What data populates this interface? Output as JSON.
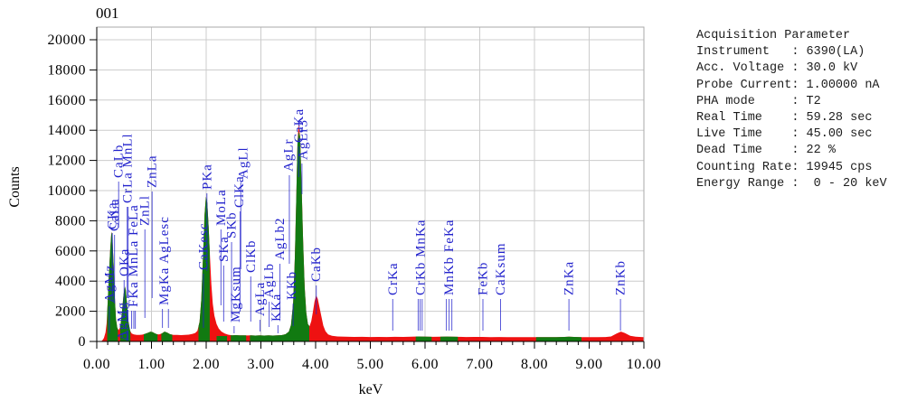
{
  "title": "001",
  "colors": {
    "spectrum_red": "#ee1111",
    "identified_green": "#117a11",
    "peak_label_blue": "#2222cc",
    "gridline": "#cccccc",
    "frame": "#aaaaaa",
    "axis": "#000000"
  },
  "acquisition": {
    "header": "Acquisition Parameter",
    "lines": [
      "Instrument   : 6390(LA)",
      "Acc. Voltage : 30.0 kV",
      "Probe Current: 1.00000 nA",
      "PHA mode     : T2",
      "Real Time    : 59.28 sec",
      "Live Time    : 45.00 sec",
      "Dead Time    : 22 %",
      "Counting Rate: 19945 cps",
      "Energy Range :  0 - 20 keV"
    ]
  },
  "chart_data": {
    "type": "area",
    "title": "001",
    "xlabel": "keV",
    "ylabel": "Counts",
    "xlim": [
      0,
      10
    ],
    "ylim": [
      0,
      20850
    ],
    "x_ticks": [
      0,
      1,
      2,
      3,
      4,
      5,
      6,
      7,
      8,
      9,
      10
    ],
    "x_minor_step": 0.2,
    "y_ticks": [
      0,
      2000,
      4000,
      6000,
      8000,
      10000,
      12000,
      14000,
      16000,
      18000,
      20000
    ],
    "grid": true,
    "legend": "none",
    "series": [
      {
        "name": "spectrum",
        "color": "#ee1111",
        "points": [
          [
            0.0,
            0
          ],
          [
            0.08,
            10
          ],
          [
            0.1,
            60
          ],
          [
            0.13,
            220
          ],
          [
            0.16,
            600
          ],
          [
            0.18,
            1200
          ],
          [
            0.2,
            2600
          ],
          [
            0.22,
            4300
          ],
          [
            0.245,
            6000
          ],
          [
            0.265,
            7100
          ],
          [
            0.275,
            7250
          ],
          [
            0.29,
            6600
          ],
          [
            0.31,
            4900
          ],
          [
            0.33,
            2900
          ],
          [
            0.35,
            1500
          ],
          [
            0.375,
            900
          ],
          [
            0.4,
            750
          ],
          [
            0.43,
            950
          ],
          [
            0.46,
            1900
          ],
          [
            0.49,
            3100
          ],
          [
            0.515,
            3650
          ],
          [
            0.53,
            3400
          ],
          [
            0.555,
            2400
          ],
          [
            0.58,
            1300
          ],
          [
            0.61,
            700
          ],
          [
            0.64,
            520
          ],
          [
            0.68,
            460
          ],
          [
            0.73,
            430
          ],
          [
            0.78,
            430
          ],
          [
            0.83,
            450
          ],
          [
            0.88,
            500
          ],
          [
            0.93,
            570
          ],
          [
            0.98,
            640
          ],
          [
            1.02,
            620
          ],
          [
            1.06,
            540
          ],
          [
            1.1,
            480
          ],
          [
            1.14,
            470
          ],
          [
            1.19,
            530
          ],
          [
            1.24,
            650
          ],
          [
            1.29,
            580
          ],
          [
            1.34,
            480
          ],
          [
            1.4,
            430
          ],
          [
            1.47,
            440
          ],
          [
            1.54,
            420
          ],
          [
            1.61,
            440
          ],
          [
            1.68,
            450
          ],
          [
            1.75,
            500
          ],
          [
            1.8,
            560
          ],
          [
            1.84,
            700
          ],
          [
            1.88,
            1300
          ],
          [
            1.91,
            2800
          ],
          [
            1.94,
            5500
          ],
          [
            1.97,
            8400
          ],
          [
            1.995,
            9600
          ],
          [
            2.02,
            9200
          ],
          [
            2.045,
            7600
          ],
          [
            2.07,
            5600
          ],
          [
            2.095,
            3800
          ],
          [
            2.12,
            2500
          ],
          [
            2.15,
            1700
          ],
          [
            2.19,
            1150
          ],
          [
            2.23,
            850
          ],
          [
            2.28,
            650
          ],
          [
            2.34,
            520
          ],
          [
            2.4,
            450
          ],
          [
            2.47,
            410
          ],
          [
            2.54,
            420
          ],
          [
            2.61,
            400
          ],
          [
            2.68,
            410
          ],
          [
            2.75,
            395
          ],
          [
            2.82,
            405
          ],
          [
            2.9,
            390
          ],
          [
            2.98,
            400
          ],
          [
            3.06,
            390
          ],
          [
            3.14,
            400
          ],
          [
            3.22,
            390
          ],
          [
            3.3,
            405
          ],
          [
            3.38,
            420
          ],
          [
            3.45,
            480
          ],
          [
            3.51,
            650
          ],
          [
            3.55,
            1100
          ],
          [
            3.59,
            2600
          ],
          [
            3.62,
            5500
          ],
          [
            3.65,
            10000
          ],
          [
            3.67,
            13200
          ],
          [
            3.69,
            14500
          ],
          [
            3.715,
            13600
          ],
          [
            3.74,
            10800
          ],
          [
            3.77,
            6800
          ],
          [
            3.8,
            3600
          ],
          [
            3.83,
            1900
          ],
          [
            3.86,
            1150
          ],
          [
            3.89,
            1000
          ],
          [
            3.92,
            1350
          ],
          [
            3.95,
            1950
          ],
          [
            3.98,
            2650
          ],
          [
            4.01,
            3050
          ],
          [
            4.04,
            2820
          ],
          [
            4.07,
            2300
          ],
          [
            4.105,
            1650
          ],
          [
            4.14,
            1050
          ],
          [
            4.18,
            680
          ],
          [
            4.23,
            470
          ],
          [
            4.3,
            380
          ],
          [
            4.4,
            330
          ],
          [
            4.55,
            310
          ],
          [
            4.7,
            300
          ],
          [
            4.85,
            305
          ],
          [
            5.0,
            295
          ],
          [
            5.15,
            300
          ],
          [
            5.3,
            295
          ],
          [
            5.45,
            305
          ],
          [
            5.6,
            300
          ],
          [
            5.75,
            310
          ],
          [
            5.88,
            330
          ],
          [
            5.95,
            325
          ],
          [
            6.05,
            310
          ],
          [
            6.15,
            305
          ],
          [
            6.28,
            315
          ],
          [
            6.4,
            325
          ],
          [
            6.5,
            315
          ],
          [
            6.6,
            305
          ],
          [
            6.75,
            295
          ],
          [
            6.9,
            300
          ],
          [
            7.05,
            300
          ],
          [
            7.2,
            290
          ],
          [
            7.35,
            295
          ],
          [
            7.5,
            285
          ],
          [
            7.65,
            290
          ],
          [
            7.8,
            282
          ],
          [
            7.95,
            288
          ],
          [
            8.1,
            282
          ],
          [
            8.25,
            285
          ],
          [
            8.4,
            288
          ],
          [
            8.55,
            300
          ],
          [
            8.63,
            310
          ],
          [
            8.72,
            298
          ],
          [
            8.85,
            288
          ],
          [
            9.0,
            282
          ],
          [
            9.15,
            285
          ],
          [
            9.3,
            295
          ],
          [
            9.4,
            330
          ],
          [
            9.5,
            520
          ],
          [
            9.58,
            650
          ],
          [
            9.65,
            560
          ],
          [
            9.75,
            380
          ],
          [
            9.85,
            310
          ],
          [
            9.95,
            295
          ],
          [
            10.0,
            290
          ]
        ]
      },
      {
        "name": "identified-regions",
        "color": "#117a11",
        "segments": [
          {
            "from": 0.19,
            "to": 0.385
          },
          {
            "from": 0.43,
            "to": 0.615
          },
          {
            "from": 0.86,
            "to": 1.11
          },
          {
            "from": 1.18,
            "to": 1.38
          },
          {
            "from": 1.86,
            "to": 2.065
          },
          {
            "from": 2.19,
            "to": 2.38,
            "cap": 360
          },
          {
            "from": 2.45,
            "to": 2.73
          },
          {
            "from": 2.8,
            "to": 3.885,
            "cap": 13900
          },
          {
            "from": 5.83,
            "to": 6.12
          },
          {
            "from": 6.28,
            "to": 6.6
          },
          {
            "from": 8.03,
            "to": 8.86
          }
        ]
      }
    ],
    "peak_labels": [
      {
        "t": "AgMz",
        "k": 0.23,
        "b": 335,
        "e": 369
      },
      {
        "t": "AgMg",
        "k": 0.46,
        "b": 377,
        "e": 0,
        "u": true
      },
      {
        "t": "CKa",
        "k": 0.285,
        "b": 254,
        "e": 334
      },
      {
        "t": "CaLa",
        "k": 0.325,
        "b": 256,
        "e": 336
      },
      {
        "t": "CaLb",
        "k": 0.4,
        "b": 197,
        "e": 252
      },
      {
        "t": "OKa",
        "k": 0.5,
        "b": 306,
        "e": 352
      },
      {
        "t": "CrLa MnLl",
        "k": 0.565,
        "b": 225,
        "e": 330,
        "lines": [
          0.556,
          0.573
        ]
      },
      {
        "t": "FKa MnLa FeLa",
        "k": 0.67,
        "b": 340,
        "e": 364,
        "lines": [
          0.637,
          0.677,
          0.705
        ]
      },
      {
        "t": "ZnLl",
        "k": 0.88,
        "b": 250,
        "e": 352
      },
      {
        "t": "ZnLa",
        "k": 1.012,
        "b": 208,
        "e": 330
      },
      {
        "t": "MgKa AgLesc",
        "k": 1.23,
        "b": 338,
        "e": 363,
        "lines": [
          1.2,
          1.31
        ]
      },
      {
        "t": "CaKesc",
        "k": 1.95,
        "b": 299,
        "e": 363
      },
      {
        "t": "PKa",
        "k": 2.013,
        "b": 210,
        "e": 300
      },
      {
        "t": "MoLa",
        "k": 2.27,
        "b": 250,
        "e": 338
      },
      {
        "t": "SKa",
        "k": 2.32,
        "b": 290,
        "e": 356
      },
      {
        "t": "SKb",
        "k": 2.464,
        "b": 264,
        "e": 352
      },
      {
        "t": "MgKsum",
        "k": 2.51,
        "b": 357,
        "e": 369,
        "tx": 2.54
      },
      {
        "t": "ClKa",
        "k": 2.621,
        "b": 230,
        "e": 345,
        "tx": 2.6
      },
      {
        "t": "AgLl",
        "k": 2.633,
        "b": 198,
        "e": 298,
        "tx": 2.68
      },
      {
        "t": "ClKb",
        "k": 2.815,
        "b": 302,
        "e": 356
      },
      {
        "t": "AgLa",
        "k": 2.984,
        "b": 350,
        "e": 367
      },
      {
        "t": "AgLb",
        "k": 3.151,
        "b": 330,
        "e": 362
      },
      {
        "t": "KKa",
        "k": 3.312,
        "b": 356,
        "e": 369,
        "tx": 3.28
      },
      {
        "t": "AgLb2",
        "k": 3.348,
        "b": 288,
        "e": 352,
        "tx": 3.35
      },
      {
        "t": "AgLr",
        "k": 3.52,
        "b": 190,
        "e": 292,
        "tx": 3.5
      },
      {
        "t": "KKb",
        "k": 3.589,
        "b": 332,
        "e": 361,
        "tx": 3.56
      },
      {
        "t": "CaKa",
        "k": 3.69,
        "b": 158,
        "e": 196,
        "tx": 3.695
      },
      {
        "t": "AgLr3",
        "k": 3.75,
        "b": 177,
        "e": 215,
        "tx": 3.77
      },
      {
        "t": "CaKb",
        "k": 4.012,
        "b": 312,
        "e": 348
      },
      {
        "t": "CrKa",
        "k": 5.41,
        "b": 327,
        "e": 366
      },
      {
        "t": "CrKb MnKa",
        "k": 5.92,
        "b": 327,
        "e": 366,
        "lines": [
          5.875,
          5.91,
          5.947
        ]
      },
      {
        "t": "MnKb FeKa",
        "k": 6.44,
        "b": 327,
        "e": 366,
        "lines": [
          6.39,
          6.44,
          6.49
        ]
      },
      {
        "t": "FeKb",
        "k": 7.058,
        "b": 327,
        "e": 366
      },
      {
        "t": "CaKsum",
        "k": 7.38,
        "b": 327,
        "e": 366
      },
      {
        "t": "ZnKa",
        "k": 8.63,
        "b": 327,
        "e": 366
      },
      {
        "t": "ZnKb",
        "k": 9.572,
        "b": 327,
        "e": 366
      }
    ]
  }
}
